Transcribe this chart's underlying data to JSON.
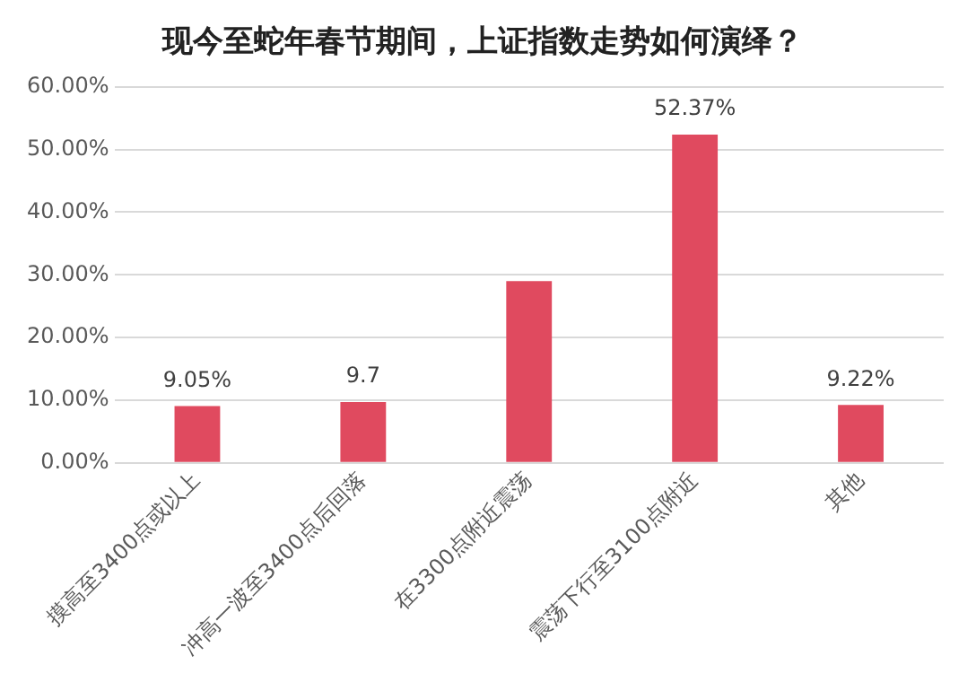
{
  "chart_data": {
    "type": "bar",
    "title": "现今至蛇年春节期间，上证指数走势如何演绎？",
    "categories": [
      "摸高至3400点或以上",
      "冲高一波至3400点后回落",
      "在3300点附近震荡",
      "震荡下行至3100点附近",
      "其他"
    ],
    "values": [
      9.05,
      9.7,
      29,
      52.37,
      9.22
    ],
    "value_labels": [
      "9.05%",
      "9.7",
      null,
      "52.37%",
      "9.22%"
    ],
    "color": "#e04a5f",
    "ylim": [
      0,
      60
    ],
    "yticks": [
      {
        "value": 0,
        "label": "0.00%"
      },
      {
        "value": 10,
        "label": "10.00%"
      },
      {
        "value": 20,
        "label": "20.00%"
      },
      {
        "value": 30,
        "label": "30.00%"
      },
      {
        "value": 40,
        "label": "40.00%"
      },
      {
        "value": 50,
        "label": "50.00%"
      },
      {
        "value": 60,
        "label": "60.00%"
      }
    ],
    "grid": "y",
    "legend": false
  }
}
